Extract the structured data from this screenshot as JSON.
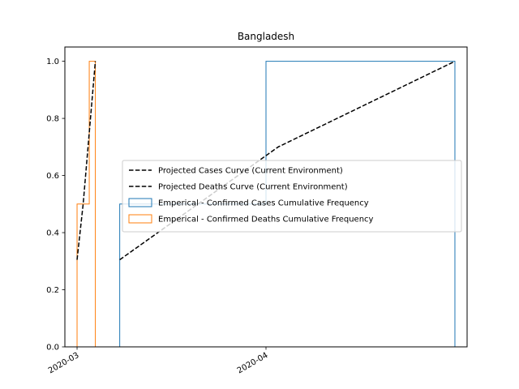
{
  "chart_data": {
    "type": "line",
    "title": "Bangladesh",
    "xlabel": "",
    "ylabel": "",
    "x_axis": {
      "type": "date",
      "ticks": [
        "2020-03",
        "2020-04"
      ],
      "tick_values": [
        "2020-03-01",
        "2020-04-01"
      ],
      "range": [
        "2020-02-28",
        "2020-05-04"
      ]
    },
    "y_axis": {
      "range": [
        0,
        1.05
      ],
      "ticks": [
        "0.0",
        "0.2",
        "0.4",
        "0.6",
        "0.8",
        "1.0"
      ],
      "tick_values": [
        0,
        0.2,
        0.4,
        0.6,
        0.8,
        1.0
      ]
    },
    "grid": false,
    "legend_position": "center-right",
    "series": [
      {
        "name": "Projected Cases Curve (Current Environment)",
        "kind": "line",
        "style": "dashed",
        "color": "#000000",
        "points": [
          {
            "x": "2020-03-08",
            "y": 0.305
          },
          {
            "x": "2020-04-03",
            "y": 0.7
          },
          {
            "x": "2020-05-02",
            "y": 1.0
          }
        ]
      },
      {
        "name": "Projected Deaths Curve (Current Environment)",
        "kind": "line",
        "style": "dashed",
        "color": "#000000",
        "points": [
          {
            "x": "2020-03-01",
            "y": 0.305
          },
          {
            "x": "2020-03-02",
            "y": 0.5
          },
          {
            "x": "2020-03-03",
            "y": 0.75
          },
          {
            "x": "2020-03-04",
            "y": 1.0
          }
        ]
      },
      {
        "name": "Emperical - Confirmed Cases Cumulative Frequency",
        "kind": "step",
        "color": "#1f77b4",
        "edges": [
          "2020-03-08",
          "2020-04-01",
          "2020-05-02"
        ],
        "values": [
          0.5,
          1.0
        ]
      },
      {
        "name": "Emperical - Confirmed Deaths Cumulative Frequency",
        "kind": "step",
        "color": "#ff7f0e",
        "edges": [
          "2020-03-01",
          "2020-03-03",
          "2020-03-04"
        ],
        "values": [
          0.5,
          1.0
        ]
      }
    ]
  }
}
